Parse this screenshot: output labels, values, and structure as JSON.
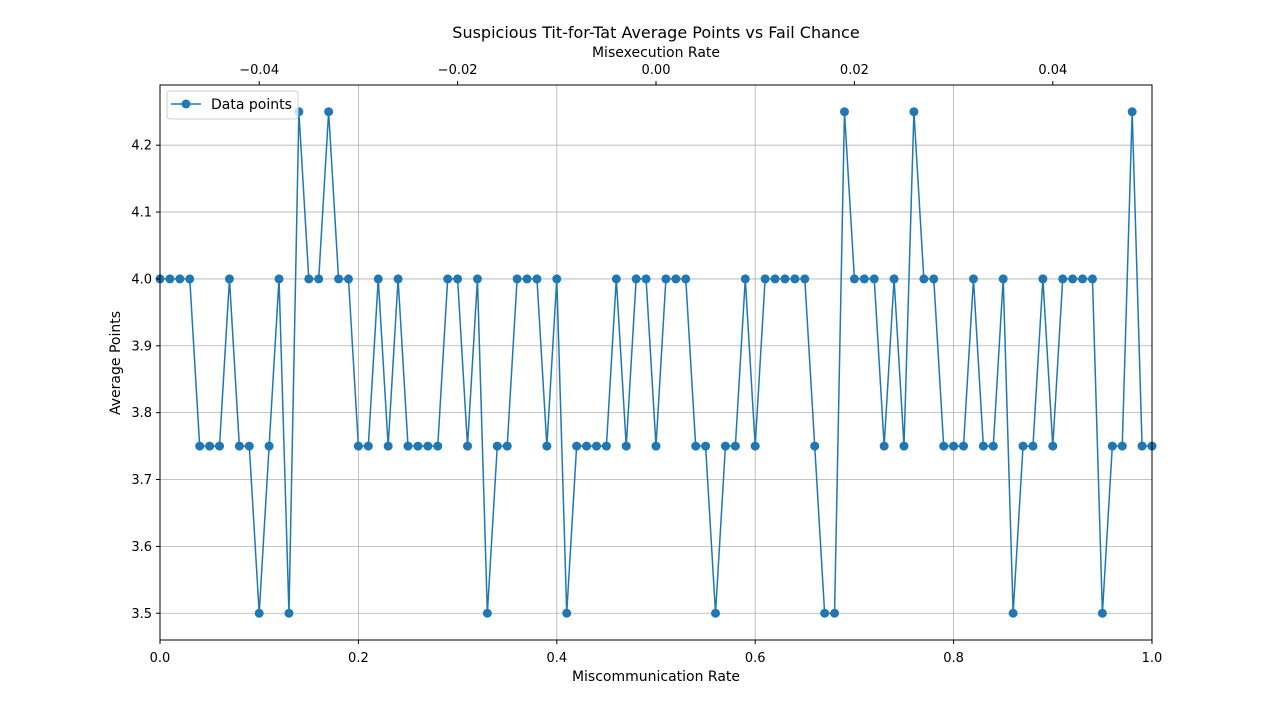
{
  "chart_data": {
    "type": "line",
    "title": "Suspicious Tit-for-Tat Average Points vs Fail Chance",
    "xlabel": "Miscommunication Rate",
    "ylabel": "Average Points",
    "x2label": "Misexecution Rate",
    "xlim": [
      0,
      1
    ],
    "ylim": [
      3.46,
      4.29
    ],
    "x2lim": [
      -0.05,
      0.05
    ],
    "xticks": [
      0,
      0.2,
      0.4,
      0.6,
      0.8,
      1.0
    ],
    "xtick_labels": [
      "0.0",
      "0.2",
      "0.4",
      "0.6",
      "0.8",
      "1.0"
    ],
    "yticks": [
      3.5,
      3.6,
      3.7,
      3.8,
      3.9,
      4.0,
      4.1,
      4.2
    ],
    "ytick_labels": [
      "3.5",
      "3.6",
      "3.7",
      "3.8",
      "3.9",
      "4.0",
      "4.1",
      "4.2"
    ],
    "x2ticks": [
      -0.04,
      -0.02,
      0.0,
      0.02,
      0.04
    ],
    "x2tick_labels": [
      "−0.04",
      "−0.02",
      "0.00",
      "0.02",
      "0.04"
    ],
    "grid": true,
    "legend_position": "upper-left",
    "color": "#1f77b4",
    "series": [
      {
        "name": "Data points",
        "marker": "circle",
        "x": [
          0.0,
          0.01,
          0.02,
          0.03,
          0.04,
          0.05,
          0.06,
          0.07,
          0.08,
          0.09,
          0.1,
          0.11,
          0.12,
          0.13,
          0.14,
          0.15,
          0.16,
          0.17,
          0.18,
          0.19,
          0.2,
          0.21,
          0.22,
          0.23,
          0.24,
          0.25,
          0.26,
          0.27,
          0.28,
          0.29,
          0.3,
          0.31,
          0.32,
          0.33,
          0.34,
          0.35,
          0.36,
          0.37,
          0.38,
          0.39,
          0.4,
          0.41,
          0.42,
          0.43,
          0.44,
          0.45,
          0.46,
          0.47,
          0.48,
          0.49,
          0.5,
          0.51,
          0.52,
          0.53,
          0.54,
          0.55,
          0.56,
          0.57,
          0.58,
          0.59,
          0.6,
          0.61,
          0.62,
          0.63,
          0.64,
          0.65,
          0.66,
          0.67,
          0.68,
          0.69,
          0.7,
          0.71,
          0.72,
          0.73,
          0.74,
          0.75,
          0.76,
          0.77,
          0.78,
          0.79,
          0.8,
          0.81,
          0.82,
          0.83,
          0.84,
          0.85,
          0.86,
          0.87,
          0.88,
          0.89,
          0.9,
          0.91,
          0.92,
          0.93,
          0.94,
          0.95,
          0.96,
          0.97,
          0.98,
          0.99,
          1.0
        ],
        "values": [
          4.0,
          4.0,
          4.0,
          4.0,
          3.75,
          3.75,
          3.75,
          4.0,
          3.75,
          3.75,
          3.5,
          3.75,
          4.0,
          3.5,
          4.25,
          4.0,
          4.0,
          4.25,
          4.0,
          4.0,
          3.75,
          3.75,
          4.0,
          3.75,
          4.0,
          3.75,
          3.75,
          3.75,
          3.75,
          4.0,
          4.0,
          3.75,
          4.0,
          3.5,
          3.75,
          3.75,
          4.0,
          4.0,
          4.0,
          3.75,
          4.0,
          3.5,
          3.75,
          3.75,
          3.75,
          3.75,
          4.0,
          3.75,
          4.0,
          4.0,
          3.75,
          4.0,
          4.0,
          4.0,
          3.75,
          3.75,
          3.5,
          3.75,
          3.75,
          4.0,
          3.75,
          4.0,
          4.0,
          4.0,
          4.0,
          4.0,
          3.75,
          3.5,
          3.5,
          4.25,
          4.0,
          4.0,
          4.0,
          3.75,
          4.0,
          3.75,
          4.25,
          4.0,
          4.0,
          3.75,
          3.75,
          3.75,
          4.0,
          3.75,
          3.75,
          4.0,
          3.5,
          3.75,
          3.75,
          4.0,
          3.75,
          4.0,
          4.0,
          4.0,
          4.0,
          3.5,
          3.75,
          3.75,
          4.25,
          3.75,
          3.75
        ]
      }
    ]
  }
}
